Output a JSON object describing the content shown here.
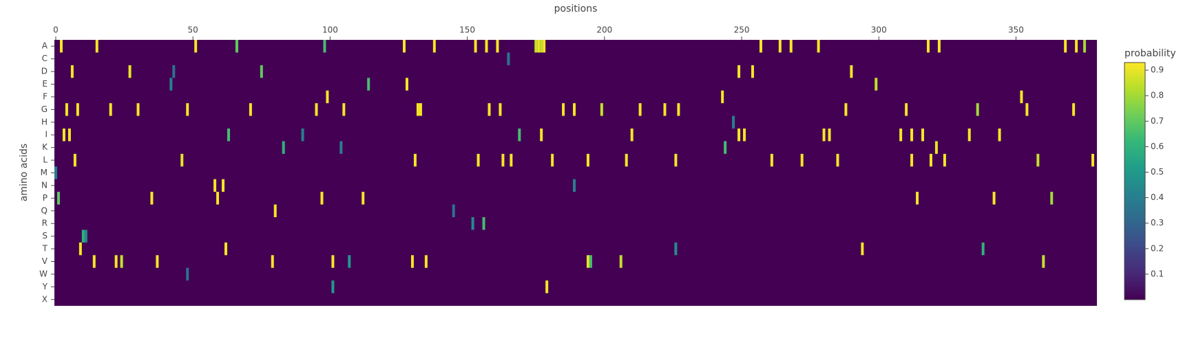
{
  "chart_data": {
    "type": "heatmap",
    "x_title": "positions",
    "y_title": "amino acids",
    "colorbar_title": "probability",
    "categories": [
      "A",
      "C",
      "D",
      "E",
      "F",
      "G",
      "H",
      "I",
      "K",
      "L",
      "M",
      "N",
      "P",
      "Q",
      "R",
      "S",
      "T",
      "V",
      "W",
      "Y",
      "X"
    ],
    "xlim": [
      -0.5,
      379.5
    ],
    "xticks": [
      0,
      50,
      100,
      150,
      200,
      250,
      300,
      350
    ],
    "zlim": [
      0,
      0.93
    ],
    "zticks": [
      0.1,
      0.2,
      0.3,
      0.4,
      0.5,
      0.6,
      0.7,
      0.8,
      0.9
    ],
    "colorscale": "Viridis",
    "x": [
      2,
      15,
      51,
      66,
      98,
      127,
      138,
      153,
      157,
      161,
      175,
      176,
      177,
      178,
      257,
      264,
      268,
      278,
      318,
      322,
      368,
      372,
      375,
      6,
      27,
      75,
      249,
      254,
      290,
      114,
      128,
      299,
      99,
      243,
      352,
      4,
      8,
      20,
      30,
      48,
      71,
      95,
      105,
      132,
      133,
      158,
      162,
      185,
      189,
      199,
      213,
      222,
      227,
      288,
      310,
      336,
      354,
      371,
      3,
      5,
      63,
      169,
      177,
      210,
      249,
      251,
      280,
      282,
      308,
      312,
      316,
      333,
      344,
      83,
      244,
      321,
      7,
      46,
      131,
      154,
      163,
      166,
      181,
      194,
      208,
      226,
      261,
      272,
      285,
      312,
      319,
      324,
      358,
      378,
      58,
      61,
      1,
      35,
      59,
      97,
      112,
      314,
      342,
      363,
      80,
      156,
      10,
      11,
      9,
      62,
      294,
      338,
      14,
      22,
      24,
      37,
      79,
      101,
      130,
      135,
      194,
      195,
      206,
      360,
      179,
      0,
      165,
      247,
      48,
      42,
      43,
      90,
      104,
      152,
      226,
      107,
      189,
      145,
      101
    ],
    "y": [
      "A",
      "A",
      "A",
      "A",
      "A",
      "A",
      "A",
      "A",
      "A",
      "A",
      "A",
      "A",
      "A",
      "A",
      "A",
      "A",
      "A",
      "A",
      "A",
      "A",
      "A",
      "A",
      "A",
      "D",
      "D",
      "D",
      "D",
      "D",
      "D",
      "E",
      "E",
      "E",
      "F",
      "F",
      "F",
      "G",
      "G",
      "G",
      "G",
      "G",
      "G",
      "G",
      "G",
      "G",
      "G",
      "G",
      "G",
      "G",
      "G",
      "G",
      "G",
      "G",
      "G",
      "G",
      "G",
      "G",
      "G",
      "G",
      "I",
      "I",
      "I",
      "I",
      "I",
      "I",
      "I",
      "I",
      "I",
      "I",
      "I",
      "I",
      "I",
      "I",
      "I",
      "K",
      "K",
      "K",
      "L",
      "L",
      "L",
      "L",
      "L",
      "L",
      "L",
      "L",
      "L",
      "L",
      "L",
      "L",
      "L",
      "L",
      "L",
      "L",
      "L",
      "L",
      "N",
      "N",
      "P",
      "P",
      "P",
      "P",
      "P",
      "P",
      "P",
      "P",
      "Q",
      "R",
      "S",
      "S",
      "T",
      "T",
      "T",
      "T",
      "V",
      "V",
      "V",
      "V",
      "V",
      "V",
      "V",
      "V",
      "V",
      "V",
      "V",
      "V",
      "Y",
      "M",
      "C",
      "H",
      "W",
      "E",
      "D",
      "I",
      "K",
      "R",
      "T",
      "V",
      "N",
      "Q",
      "Y"
    ],
    "z": [
      0.92,
      0.92,
      0.92,
      0.7,
      0.65,
      0.92,
      0.92,
      0.92,
      0.92,
      0.92,
      0.85,
      0.9,
      0.85,
      0.92,
      0.92,
      0.92,
      0.92,
      0.92,
      0.92,
      0.92,
      0.92,
      0.92,
      0.8,
      0.92,
      0.9,
      0.7,
      0.92,
      0.92,
      0.92,
      0.65,
      0.92,
      0.85,
      0.92,
      0.92,
      0.92,
      0.92,
      0.92,
      0.92,
      0.92,
      0.92,
      0.92,
      0.92,
      0.92,
      0.92,
      0.92,
      0.92,
      0.92,
      0.92,
      0.92,
      0.85,
      0.92,
      0.92,
      0.92,
      0.92,
      0.92,
      0.8,
      0.92,
      0.92,
      0.92,
      0.92,
      0.65,
      0.65,
      0.92,
      0.92,
      0.92,
      0.92,
      0.92,
      0.92,
      0.92,
      0.92,
      0.92,
      0.92,
      0.92,
      0.6,
      0.65,
      0.9,
      0.92,
      0.9,
      0.92,
      0.92,
      0.92,
      0.92,
      0.92,
      0.92,
      0.92,
      0.92,
      0.92,
      0.92,
      0.92,
      0.92,
      0.92,
      0.92,
      0.85,
      0.92,
      0.92,
      0.92,
      0.7,
      0.92,
      0.92,
      0.92,
      0.92,
      0.92,
      0.92,
      0.8,
      0.92,
      0.65,
      0.6,
      0.45,
      0.92,
      0.92,
      0.92,
      0.6,
      0.92,
      0.92,
      0.85,
      0.92,
      0.92,
      0.92,
      0.92,
      0.92,
      0.9,
      0.65,
      0.85,
      0.85,
      0.92,
      0.4,
      0.35,
      0.4,
      0.35,
      0.4,
      0.35,
      0.4,
      0.4,
      0.45,
      0.45,
      0.5,
      0.4,
      0.35,
      0.5
    ]
  }
}
